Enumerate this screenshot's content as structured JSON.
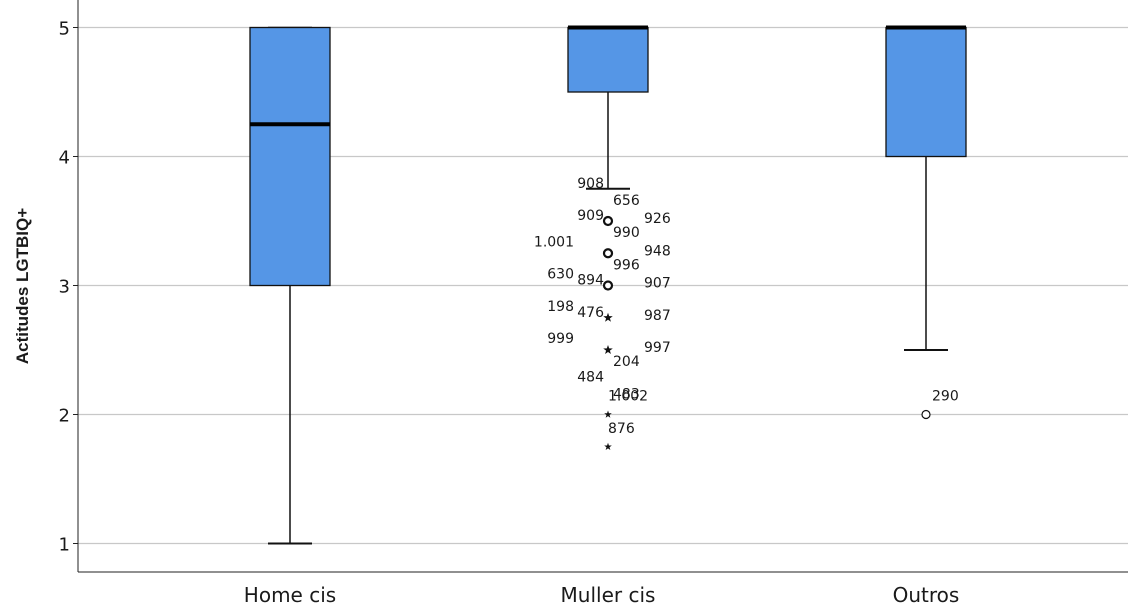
{
  "chart_data": {
    "type": "box",
    "ylabel": "Actitudes LGTBIQ+",
    "xlabel": "",
    "ylim": [
      1,
      5
    ],
    "yticks": [
      "1",
      "2",
      "3",
      "4",
      "5"
    ],
    "grid": true,
    "box_color": "#5596E6",
    "categories": [
      "Home cis",
      "Muller cis",
      "Outros"
    ],
    "boxes": [
      {
        "category": "Home cis",
        "whisker_low": 1.0,
        "q1": 3.0,
        "median": 4.25,
        "q3": 5.0,
        "whisker_high": 5.0
      },
      {
        "category": "Muller cis",
        "whisker_low": 3.75,
        "q1": 4.5,
        "median": 5.0,
        "q3": 5.0,
        "whisker_high": 5.0
      },
      {
        "category": "Outros",
        "whisker_low": 2.5,
        "q1": 4.0,
        "median": 5.0,
        "q3": 5.0,
        "whisker_high": 5.0
      }
    ],
    "outliers": [
      {
        "category": "Muller cis",
        "value": 3.5,
        "marker": "circle"
      },
      {
        "category": "Muller cis",
        "value": 3.25,
        "marker": "circle"
      },
      {
        "category": "Muller cis",
        "value": 3.0,
        "marker": "circle"
      },
      {
        "category": "Muller cis",
        "value": 2.75,
        "marker": "star"
      },
      {
        "category": "Muller cis",
        "value": 2.5,
        "marker": "star"
      },
      {
        "category": "Muller cis",
        "value": 2.0,
        "marker": "star"
      },
      {
        "category": "Muller cis",
        "value": 1.75,
        "marker": "star"
      },
      {
        "category": "Outros",
        "value": 2.0,
        "marker": "circle"
      }
    ],
    "outlier_labels": [
      {
        "category": "Muller cis",
        "value": 3.75,
        "label": "908",
        "side": "left",
        "shift": 0
      },
      {
        "category": "Muller cis",
        "value": 3.75,
        "label": "656",
        "side": "right",
        "shift": 1
      },
      {
        "category": "Muller cis",
        "value": 3.5,
        "label": "909",
        "side": "left",
        "shift": 0
      },
      {
        "category": "Muller cis",
        "value": 3.5,
        "label": "990",
        "side": "right",
        "shift": 1
      },
      {
        "category": "Muller cis",
        "value": 3.5,
        "label": "926",
        "side": "right",
        "shift": 0
      },
      {
        "category": "Muller cis",
        "value": 3.25,
        "label": "1.001",
        "side": "left",
        "shift": -1
      },
      {
        "category": "Muller cis",
        "value": 3.25,
        "label": "996",
        "side": "right",
        "shift": 1
      },
      {
        "category": "Muller cis",
        "value": 3.25,
        "label": "948",
        "side": "right",
        "shift": 0
      },
      {
        "category": "Muller cis",
        "value": 3.0,
        "label": "630",
        "side": "left",
        "shift": -1
      },
      {
        "category": "Muller cis",
        "value": 3.0,
        "label": "894",
        "side": "left",
        "shift": 0
      },
      {
        "category": "Muller cis",
        "value": 3.0,
        "label": "907",
        "side": "right",
        "shift": 0
      },
      {
        "category": "Muller cis",
        "value": 2.75,
        "label": "198",
        "side": "left",
        "shift": -1
      },
      {
        "category": "Muller cis",
        "value": 2.75,
        "label": "476",
        "side": "left",
        "shift": 0
      },
      {
        "category": "Muller cis",
        "value": 2.75,
        "label": "987",
        "side": "right",
        "shift": 0
      },
      {
        "category": "Muller cis",
        "value": 2.5,
        "label": "999",
        "side": "left",
        "shift": -1
      },
      {
        "category": "Muller cis",
        "value": 2.5,
        "label": "204",
        "side": "right",
        "shift": 1
      },
      {
        "category": "Muller cis",
        "value": 2.5,
        "label": "997",
        "side": "right",
        "shift": 0
      },
      {
        "category": "Muller cis",
        "value": 2.25,
        "label": "484",
        "side": "left",
        "shift": 0
      },
      {
        "category": "Muller cis",
        "value": 2.25,
        "label": "483",
        "side": "right",
        "shift": 1
      },
      {
        "category": "Muller cis",
        "value": 2.0,
        "label": "1.002",
        "side": "right",
        "shift": 0
      },
      {
        "category": "Muller cis",
        "value": 1.75,
        "label": "876",
        "side": "right",
        "shift": 0
      },
      {
        "category": "Outros",
        "value": 2.0,
        "label": "290",
        "side": "right",
        "shift": 0
      }
    ]
  }
}
